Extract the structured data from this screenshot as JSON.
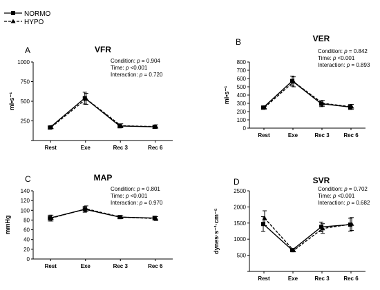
{
  "legend": {
    "series": [
      {
        "name": "NORMO",
        "marker": "square",
        "dash": "solid"
      },
      {
        "name": "HYPO",
        "marker": "triangle",
        "dash": "dashed"
      }
    ]
  },
  "chart_data": [
    {
      "type": "line",
      "panel_letter": "A",
      "title": "VFR",
      "ylabel": "ml•s⁻¹",
      "categories": [
        "Rest",
        "Exe",
        "Rec 3",
        "Rec 6"
      ],
      "ylim": [
        0,
        1000
      ],
      "yticks": [
        0,
        250,
        500,
        750,
        1000
      ],
      "ytick_labels": [
        "",
        "250",
        "500",
        "750",
        "1000"
      ],
      "stats": {
        "condition": "Condition: p = 0.904",
        "time": "Time: p <0.001",
        "interaction": "Interaction: p = 0.720"
      },
      "series": [
        {
          "name": "NORMO",
          "values": [
            165,
            540,
            185,
            175
          ],
          "errors": [
            20,
            75,
            25,
            22
          ]
        },
        {
          "name": "HYPO",
          "values": [
            170,
            530,
            188,
            178
          ],
          "errors": [
            20,
            70,
            25,
            22
          ]
        }
      ]
    },
    {
      "type": "line",
      "panel_letter": "B",
      "title": "VER",
      "ylabel": "ml•s⁻¹",
      "categories": [
        "Rest",
        "Exe",
        "Rec 3",
        "Rec 6"
      ],
      "ylim": [
        0,
        800
      ],
      "yticks": [
        0,
        100,
        200,
        300,
        400,
        500,
        600,
        700,
        800
      ],
      "ytick_labels": [
        "0",
        "100",
        "200",
        "300",
        "400",
        "500",
        "600",
        "700",
        "800"
      ],
      "stats": {
        "condition": "Condition: p = 0.842",
        "time": "Time: p <0.001",
        "interaction": "Interaction: p = 0.893"
      },
      "series": [
        {
          "name": "NORMO",
          "values": [
            248,
            570,
            295,
            255
          ],
          "errors": [
            20,
            60,
            35,
            30
          ]
        },
        {
          "name": "HYPO",
          "values": [
            250,
            560,
            300,
            258
          ],
          "errors": [
            20,
            60,
            35,
            30
          ]
        }
      ]
    },
    {
      "type": "line",
      "panel_letter": "C",
      "title": "MAP",
      "ylabel": "mmHg",
      "categories": [
        "Rest",
        "Exe",
        "Rec 3",
        "Rec 6"
      ],
      "ylim": [
        0,
        140
      ],
      "yticks": [
        0,
        20,
        40,
        60,
        80,
        100,
        120,
        140
      ],
      "ytick_labels": [
        "0",
        "20",
        "40",
        "60",
        "80",
        "100",
        "120",
        "140"
      ],
      "stats": {
        "condition": "Condition: p = 0.801",
        "time": "Time: p <0.001",
        "interaction": "Interaction: p = 0.970"
      },
      "series": [
        {
          "name": "NORMO",
          "values": [
            84,
            102,
            86,
            84
          ],
          "errors": [
            6,
            6,
            3,
            4
          ]
        },
        {
          "name": "HYPO",
          "values": [
            84,
            103,
            86,
            83
          ],
          "errors": [
            6,
            6,
            3,
            4
          ]
        }
      ]
    },
    {
      "type": "line",
      "panel_letter": "D",
      "title": "SVR",
      "ylabel": "dynes·s⁻¹·cm⁻⁵",
      "categories": [
        "Rest",
        "Exe",
        "Rec 3",
        "Rec 6"
      ],
      "ylim": [
        0,
        2500
      ],
      "yticks": [
        0,
        500,
        1000,
        1500,
        2000,
        2500
      ],
      "ytick_labels": [
        "",
        "500",
        "1000",
        "1500",
        "2000",
        "2500"
      ],
      "stats": {
        "condition": "Condition: p = 0.702",
        "time": "Time: p <0.001",
        "interaction": "Interaction: p = 0.682"
      },
      "series": [
        {
          "name": "NORMO",
          "values": [
            1470,
            660,
            1380,
            1450
          ],
          "errors": [
            230,
            40,
            150,
            200
          ]
        },
        {
          "name": "HYPO",
          "values": [
            1650,
            650,
            1330,
            1470
          ],
          "errors": [
            230,
            40,
            150,
            200
          ]
        }
      ]
    }
  ]
}
